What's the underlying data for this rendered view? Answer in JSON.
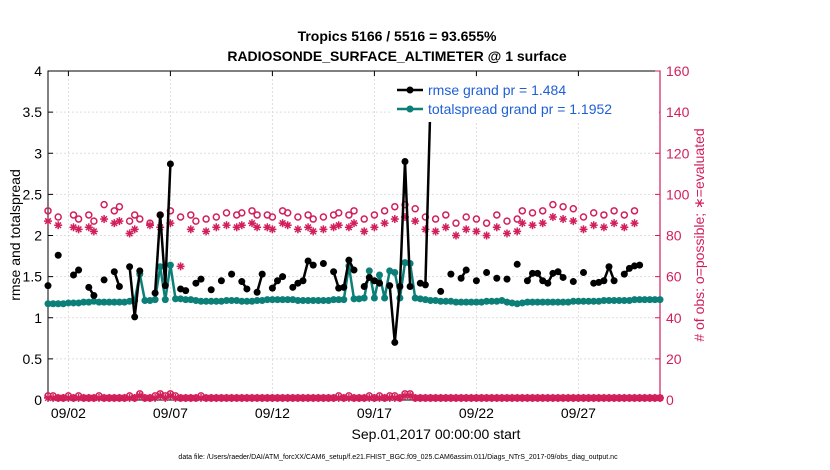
{
  "chart_data": {
    "type": "line",
    "title_line1": "Tropics 5166 / 5516 = 93.655%",
    "title_line2": "RADIOSONDE_SURFACE_ALTIMETER @ 1 surface",
    "xlabel": "Sep.01,2017 00:00:00 start",
    "ylabel_left": "rmse and totalspread",
    "ylabel_right": "# of obs: o=possible; ∗=evaluated",
    "xlim": [
      1.0,
      31.0
    ],
    "ylim_left": [
      0,
      4
    ],
    "ylim_right": [
      0,
      160
    ],
    "xticks": [
      {
        "x": 2,
        "label": "09/02"
      },
      {
        "x": 7,
        "label": "09/07"
      },
      {
        "x": 12,
        "label": "09/12"
      },
      {
        "x": 17,
        "label": "09/17"
      },
      {
        "x": 22,
        "label": "09/22"
      },
      {
        "x": 27,
        "label": "09/27"
      }
    ],
    "yticks_left": [
      "0",
      "0.5",
      "1",
      "1.5",
      "2",
      "2.5",
      "3",
      "3.5",
      "4"
    ],
    "yticks_right": [
      "0",
      "20",
      "40",
      "60",
      "80",
      "100",
      "120",
      "140",
      "160"
    ],
    "colors": {
      "rmse": "#000000",
      "spread": "#0b7f78",
      "obs": "#d21f5a",
      "axis_right": "#d21f5a",
      "legend_text": "#1f5fd6"
    },
    "legend": [
      {
        "name": "rmse",
        "label": "rmse grand pr = 1.484"
      },
      {
        "name": "totalspread",
        "label": "totalspread grand pr = 1.1952"
      }
    ],
    "footnote": "data file: /Users/raeder/DAI/ATM_forcXX/CAM6_setup/f.e21.FHIST_BGC.f09_025.CAM6assim.011/Diags_NTrS_2017-09/obs_diag_output.nc",
    "x": [
      1.0,
      1.25,
      1.5,
      1.75,
      2.0,
      2.25,
      2.5,
      2.75,
      3.0,
      3.25,
      3.5,
      3.75,
      4.0,
      4.25,
      4.5,
      4.75,
      5.0,
      5.25,
      5.5,
      5.75,
      6.0,
      6.25,
      6.5,
      6.75,
      7.0,
      7.25,
      7.5,
      7.75,
      8.0,
      8.25,
      8.5,
      8.75,
      9.0,
      9.25,
      9.5,
      9.75,
      10.0,
      10.25,
      10.5,
      10.75,
      11.0,
      11.25,
      11.5,
      11.75,
      12.0,
      12.25,
      12.5,
      12.75,
      13.0,
      13.25,
      13.5,
      13.75,
      14.0,
      14.25,
      14.5,
      14.75,
      15.0,
      15.25,
      15.5,
      15.75,
      16.0,
      16.25,
      16.5,
      16.75,
      17.0,
      17.25,
      17.5,
      17.75,
      18.0,
      18.25,
      18.5,
      18.75,
      19.0,
      19.25,
      19.5,
      19.75,
      20.0,
      20.25,
      20.5,
      20.75,
      21.0,
      21.25,
      21.5,
      21.75,
      22.0,
      22.25,
      22.5,
      22.75,
      23.0,
      23.25,
      23.5,
      23.75,
      24.0,
      24.25,
      24.5,
      24.75,
      25.0,
      25.25,
      25.5,
      25.75,
      26.0,
      26.25,
      26.5,
      26.75,
      27.0,
      27.25,
      27.5,
      27.75,
      28.0,
      28.25,
      28.5,
      28.75,
      29.0,
      29.25,
      29.5,
      29.75,
      30.0,
      30.25,
      30.5,
      30.75,
      31.0
    ],
    "rmse": [
      1.39,
      null,
      1.76,
      null,
      null,
      1.52,
      1.58,
      null,
      1.37,
      1.27,
      null,
      1.46,
      null,
      1.56,
      1.38,
      null,
      1.62,
      1.01,
      1.57,
      null,
      null,
      1.3,
      2.25,
      1.39,
      2.87,
      null,
      1.35,
      1.33,
      null,
      1.42,
      1.47,
      null,
      1.34,
      null,
      1.45,
      null,
      1.53,
      null,
      1.44,
      1.35,
      null,
      1.31,
      1.53,
      null,
      1.36,
      1.45,
      1.5,
      null,
      1.37,
      1.42,
      1.45,
      1.69,
      1.64,
      null,
      1.66,
      null,
      1.56,
      1.36,
      1.37,
      1.7,
      1.58,
      null,
      1.38,
      1.49,
      1.45,
      1.42,
      null,
      1.39,
      0.7,
      1.38,
      2.9,
      1.38,
      null,
      1.42,
      1.4,
      3.65,
      null,
      1.32,
      null,
      1.53,
      null,
      1.48,
      1.58,
      null,
      1.45,
      null,
      1.55,
      null,
      1.48,
      null,
      1.47,
      null,
      1.65,
      null,
      1.45,
      1.54,
      1.54,
      1.45,
      1.42,
      1.54,
      1.56,
      1.49,
      null,
      1.44,
      null,
      1.55,
      null,
      1.42,
      1.43,
      1.45,
      1.62,
      1.45,
      null,
      1.53,
      1.6,
      1.63,
      1.64,
      null
    ],
    "spread": [
      1.17,
      1.17,
      1.17,
      1.17,
      1.18,
      1.18,
      1.18,
      1.19,
      1.19,
      1.2,
      1.19,
      1.19,
      1.19,
      1.19,
      1.19,
      1.19,
      1.2,
      1.21,
      1.53,
      1.21,
      1.21,
      1.22,
      1.62,
      1.22,
      1.64,
      1.23,
      1.23,
      1.22,
      1.22,
      1.21,
      1.2,
      1.2,
      1.2,
      1.2,
      1.2,
      1.21,
      1.21,
      1.21,
      1.2,
      1.2,
      1.2,
      1.21,
      1.21,
      1.22,
      1.22,
      1.22,
      1.22,
      1.22,
      1.22,
      1.21,
      1.21,
      1.21,
      1.21,
      1.21,
      1.21,
      1.21,
      1.22,
      1.22,
      1.22,
      1.63,
      1.23,
      1.23,
      1.24,
      1.57,
      1.24,
      1.52,
      1.24,
      1.57,
      1.55,
      1.24,
      1.67,
      1.66,
      1.24,
      1.23,
      1.22,
      1.21,
      1.21,
      1.2,
      1.2,
      1.2,
      1.19,
      1.19,
      1.19,
      1.19,
      1.19,
      1.19,
      1.2,
      1.2,
      1.2,
      1.21,
      1.19,
      1.18,
      1.17,
      1.18,
      1.19,
      1.19,
      1.19,
      1.19,
      1.19,
      1.19,
      1.19,
      1.19,
      1.19,
      1.2,
      1.2,
      1.2,
      1.2,
      1.2,
      1.2,
      1.21,
      1.21,
      1.21,
      1.21,
      1.21,
      1.21,
      1.22,
      1.22,
      1.22,
      1.22,
      1.22,
      1.22
    ],
    "possible": [
      92,
      null,
      89,
      null,
      null,
      90,
      88,
      null,
      90,
      87,
      null,
      95,
      null,
      92,
      94,
      null,
      87,
      90,
      88,
      null,
      86,
      null,
      90,
      null,
      92,
      null,
      89,
      null,
      90,
      87,
      null,
      88,
      null,
      89,
      null,
      91,
      null,
      90,
      91,
      null,
      92,
      90,
      null,
      90,
      89,
      null,
      92,
      91,
      null,
      89,
      null,
      90,
      88,
      null,
      89,
      null,
      90,
      91,
      null,
      90,
      92,
      null,
      88,
      null,
      90,
      null,
      92,
      null,
      94,
      null,
      95,
      null,
      93,
      null,
      89,
      null,
      88,
      null,
      90,
      null,
      86,
      null,
      89,
      null,
      88,
      null,
      86,
      null,
      90,
      null,
      87,
      null,
      88,
      92,
      null,
      91,
      null,
      92,
      null,
      95,
      null,
      94,
      null,
      93,
      null,
      89,
      null,
      91,
      null,
      90,
      null,
      92,
      null,
      90,
      null,
      92,
      null,
      null,
      null,
      null,
      null
    ],
    "evaluated": [
      87,
      null,
      85,
      null,
      null,
      84,
      83,
      null,
      84,
      82,
      null,
      88,
      null,
      86,
      87,
      null,
      81,
      83,
      null,
      null,
      85,
      null,
      84,
      null,
      86,
      null,
      65,
      null,
      83,
      null,
      null,
      82,
      null,
      84,
      null,
      85,
      null,
      84,
      85,
      null,
      86,
      84,
      null,
      84,
      83,
      null,
      86,
      85,
      null,
      83,
      null,
      84,
      82,
      null,
      83,
      null,
      84,
      85,
      null,
      84,
      86,
      null,
      82,
      null,
      84,
      null,
      86,
      null,
      88,
      null,
      89,
      null,
      87,
      null,
      83,
      null,
      82,
      null,
      84,
      null,
      80,
      null,
      83,
      null,
      82,
      null,
      80,
      null,
      84,
      null,
      81,
      null,
      82,
      86,
      null,
      85,
      null,
      86,
      null,
      89,
      null,
      88,
      null,
      87,
      null,
      83,
      null,
      85,
      null,
      84,
      null,
      86,
      null,
      84,
      null,
      86,
      null,
      null,
      null,
      null,
      null
    ],
    "possible_bottom": [
      2,
      2,
      1,
      1,
      2,
      1,
      2,
      1,
      1,
      1,
      2,
      1,
      1,
      1,
      1,
      1,
      2,
      1,
      3,
      1,
      1,
      2,
      3,
      2,
      3,
      2,
      1,
      1,
      1,
      1,
      2,
      1,
      1,
      1,
      1,
      1,
      1,
      1,
      1,
      1,
      1,
      1,
      1,
      1,
      1,
      1,
      1,
      1,
      1,
      1,
      1,
      1,
      1,
      1,
      1,
      1,
      1,
      2,
      1,
      2,
      1,
      1,
      1,
      2,
      1,
      2,
      1,
      2,
      2,
      1,
      3,
      3,
      1,
      1,
      1,
      1,
      1,
      1,
      1,
      1,
      1,
      1,
      1,
      1,
      1,
      1,
      1,
      1,
      1,
      1,
      1,
      1,
      1,
      1,
      1,
      1,
      1,
      1,
      1,
      1,
      1,
      1,
      1,
      1,
      1,
      1,
      1,
      1,
      1,
      1,
      1,
      1,
      1,
      1,
      1,
      1,
      1,
      1,
      1,
      1,
      1
    ],
    "evaluated_bottom": [
      1,
      1,
      1,
      1,
      1,
      1,
      1,
      1,
      1,
      1,
      1,
      1,
      1,
      1,
      1,
      1,
      1,
      1,
      2,
      1,
      1,
      1,
      2,
      1,
      2,
      1,
      1,
      1,
      1,
      1,
      1,
      1,
      1,
      1,
      1,
      1,
      1,
      1,
      1,
      1,
      1,
      1,
      1,
      1,
      1,
      1,
      1,
      1,
      1,
      1,
      1,
      1,
      1,
      1,
      1,
      1,
      1,
      1,
      1,
      1,
      1,
      1,
      1,
      1,
      1,
      1,
      1,
      1,
      1,
      1,
      2,
      2,
      1,
      1,
      1,
      1,
      1,
      1,
      1,
      1,
      1,
      1,
      1,
      1,
      1,
      1,
      1,
      1,
      1,
      1,
      1,
      1,
      1,
      1,
      1,
      1,
      1,
      1,
      1,
      1,
      1,
      1,
      1,
      1,
      1,
      1,
      1,
      1,
      1,
      1,
      1,
      1,
      1,
      1,
      1,
      1,
      1,
      1,
      1,
      1,
      1
    ]
  }
}
